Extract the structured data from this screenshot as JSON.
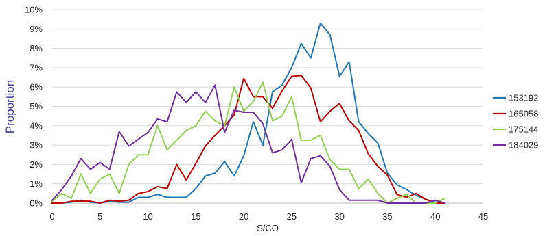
{
  "chart_data": {
    "type": "line",
    "title": "",
    "xlabel": "S/CO",
    "ylabel": "Proportion",
    "xlim": [
      0,
      45
    ],
    "ylim": [
      0,
      10
    ],
    "x_ticks": [
      0,
      5,
      10,
      15,
      20,
      25,
      30,
      35,
      40,
      45
    ],
    "y_ticks": [
      0,
      1,
      2,
      3,
      4,
      5,
      6,
      7,
      8,
      9,
      10
    ],
    "y_tick_labels": [
      "0%",
      "1%",
      "2%",
      "3%",
      "4%",
      "5%",
      "6%",
      "7%",
      "8%",
      "9%",
      "10%"
    ],
    "y_unit": "%",
    "grid": "horizontal",
    "legend_position": "right",
    "x": [
      0,
      1,
      2,
      3,
      4,
      5,
      6,
      7,
      8,
      9,
      10,
      11,
      12,
      13,
      14,
      15,
      16,
      17,
      18,
      19,
      20,
      21,
      22,
      23,
      24,
      25,
      26,
      27,
      28,
      29,
      30,
      31,
      32,
      33,
      34,
      35,
      36,
      37,
      38,
      39,
      40,
      41
    ],
    "series": [
      {
        "name": "153192",
        "color": "#1f77b4",
        "values": [
          0,
          0,
          0.05,
          0.15,
          0.05,
          0,
          0.1,
          0.05,
          0.05,
          0.3,
          0.3,
          0.45,
          0.3,
          0.3,
          0.3,
          0.75,
          1.4,
          1.55,
          2.15,
          1.4,
          2.45,
          4.2,
          3,
          5.75,
          6.1,
          7,
          8.25,
          7.5,
          9.3,
          8.7,
          6.55,
          7.3,
          4.2,
          3.6,
          3.1,
          1.55,
          0.95,
          0.7,
          0.4,
          0.2,
          0.05,
          0
        ]
      },
      {
        "name": "165058",
        "color": "#c00000",
        "values": [
          0,
          0,
          0.1,
          0.1,
          0.1,
          0,
          0.15,
          0.1,
          0.15,
          0.5,
          0.6,
          0.85,
          0.75,
          2,
          1.2,
          2.05,
          2.95,
          3.5,
          4,
          4.55,
          6.45,
          5.5,
          5.5,
          4.9,
          5.8,
          6.55,
          6.6,
          5.95,
          4.2,
          4.75,
          5.15,
          4.25,
          3.75,
          2.55,
          1.9,
          1.45,
          0.45,
          0.3,
          0.5,
          0.2,
          0,
          0
        ]
      },
      {
        "name": "175144",
        "color": "#92d050",
        "values": [
          0.1,
          0.5,
          0.25,
          1.5,
          0.5,
          1.25,
          1.5,
          0.5,
          2,
          2.5,
          2.5,
          4,
          2.75,
          3.25,
          3.75,
          4,
          4.75,
          4.25,
          4,
          6,
          4.75,
          5.25,
          6.25,
          4.25,
          4.5,
          5.5,
          3.25,
          3.25,
          3.5,
          2.25,
          1.75,
          1.75,
          0.75,
          1.25,
          0.5,
          0,
          0.25,
          0.45,
          0,
          0,
          0,
          0.25
        ]
      },
      {
        "name": "184029",
        "color": "#7030a0",
        "values": [
          0.15,
          0.7,
          1.4,
          2.3,
          1.75,
          2.1,
          1.75,
          3.7,
          2.95,
          3.3,
          3.65,
          4.35,
          4.2,
          5.75,
          5.2,
          5.75,
          5.2,
          6.1,
          3.65,
          4.8,
          4.7,
          4.7,
          4.1,
          2.6,
          2.75,
          3.3,
          1.05,
          2.3,
          2.45,
          1.9,
          0.7,
          0.15,
          0.15,
          0.15,
          0.15,
          0,
          0,
          0,
          0,
          0,
          0.15,
          0
        ]
      }
    ]
  }
}
